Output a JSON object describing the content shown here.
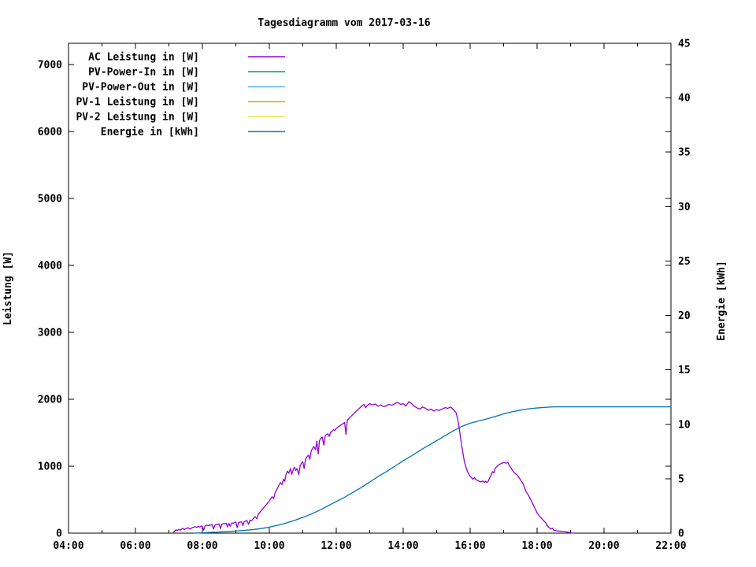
{
  "title": "Tagesdiagramm vom 2017-03-16",
  "background_color": "#ffffff",
  "chart_data": {
    "type": "line",
    "title": "Tagesdiagramm vom 2017-03-16",
    "xlabel": "",
    "ylabel": "Leistung [W]",
    "y2label": "Energie [kWh]",
    "xlim": [
      4,
      22
    ],
    "ylim": [
      0,
      7320
    ],
    "y2lim": [
      0,
      45
    ],
    "grid": "off",
    "legend_position": "inside-top-left",
    "axes": {
      "x": {
        "major_ticks": [
          {
            "v": 4,
            "label": "04:00"
          },
          {
            "v": 6,
            "label": "06:00"
          },
          {
            "v": 8,
            "label": "08:00"
          },
          {
            "v": 10,
            "label": "10:00"
          },
          {
            "v": 12,
            "label": "12:00"
          },
          {
            "v": 14,
            "label": "14:00"
          },
          {
            "v": 16,
            "label": "16:00"
          },
          {
            "v": 18,
            "label": "18:00"
          },
          {
            "v": 20,
            "label": "20:00"
          },
          {
            "v": 22,
            "label": "22:00"
          }
        ],
        "minor_ticks": [
          5,
          7,
          9,
          11,
          13,
          15,
          17,
          19,
          21
        ]
      },
      "y": {
        "label": "Leistung [W]",
        "ticks": [
          {
            "v": 0,
            "label": "0"
          },
          {
            "v": 1000,
            "label": "1000"
          },
          {
            "v": 2000,
            "label": "2000"
          },
          {
            "v": 3000,
            "label": "3000"
          },
          {
            "v": 4000,
            "label": "4000"
          },
          {
            "v": 5000,
            "label": "5000"
          },
          {
            "v": 6000,
            "label": "6000"
          },
          {
            "v": 7000,
            "label": "7000"
          }
        ]
      },
      "y2": {
        "label": "Energie [kWh]",
        "ticks": [
          {
            "v": 0,
            "label": "0"
          },
          {
            "v": 5,
            "label": "5"
          },
          {
            "v": 10,
            "label": "10"
          },
          {
            "v": 15,
            "label": "15"
          },
          {
            "v": 20,
            "label": "20"
          },
          {
            "v": 25,
            "label": "25"
          },
          {
            "v": 30,
            "label": "30"
          },
          {
            "v": 35,
            "label": "35"
          },
          {
            "v": 40,
            "label": "40"
          },
          {
            "v": 45,
            "label": "45"
          }
        ]
      }
    },
    "series": [
      {
        "name": "AC Leistung in [W]",
        "color": "#9400d3",
        "axis": "y",
        "points": [
          [
            7.13,
            5
          ],
          [
            7.17,
            30
          ],
          [
            7.21,
            50
          ],
          [
            7.25,
            40
          ],
          [
            7.29,
            55
          ],
          [
            7.33,
            45
          ],
          [
            7.38,
            60
          ],
          [
            7.42,
            70
          ],
          [
            7.46,
            55
          ],
          [
            7.5,
            65
          ],
          [
            7.54,
            75
          ],
          [
            7.58,
            80
          ],
          [
            7.63,
            60
          ],
          [
            7.67,
            75
          ],
          [
            7.71,
            85
          ],
          [
            7.75,
            90
          ],
          [
            7.79,
            95
          ],
          [
            7.83,
            88
          ],
          [
            7.88,
            100
          ],
          [
            7.92,
            92
          ],
          [
            7.96,
            105
          ],
          [
            8.0,
            100
          ],
          [
            8.04,
            45
          ],
          [
            8.08,
            108
          ],
          [
            8.13,
            118
          ],
          [
            8.17,
            112
          ],
          [
            8.21,
            122
          ],
          [
            8.25,
            118
          ],
          [
            8.29,
            128
          ],
          [
            8.33,
            62
          ],
          [
            8.38,
            124
          ],
          [
            8.42,
            132
          ],
          [
            8.46,
            128
          ],
          [
            8.5,
            138
          ],
          [
            8.54,
            68
          ],
          [
            8.58,
            134
          ],
          [
            8.63,
            142
          ],
          [
            8.67,
            138
          ],
          [
            8.71,
            148
          ],
          [
            8.75,
            92
          ],
          [
            8.79,
            148
          ],
          [
            8.83,
            102
          ],
          [
            8.88,
            152
          ],
          [
            8.92,
            148
          ],
          [
            8.96,
            158
          ],
          [
            9.0,
            165
          ],
          [
            9.04,
            82
          ],
          [
            9.08,
            158
          ],
          [
            9.13,
            165
          ],
          [
            9.17,
            168
          ],
          [
            9.21,
            112
          ],
          [
            9.25,
            172
          ],
          [
            9.29,
            182
          ],
          [
            9.33,
            188
          ],
          [
            9.38,
            132
          ],
          [
            9.42,
            195
          ],
          [
            9.46,
            185
          ],
          [
            9.5,
            200
          ],
          [
            9.54,
            230
          ],
          [
            9.58,
            245
          ],
          [
            9.63,
            215
          ],
          [
            9.67,
            280
          ],
          [
            9.75,
            330
          ],
          [
            9.83,
            380
          ],
          [
            9.92,
            430
          ],
          [
            10.0,
            480
          ],
          [
            10.08,
            545
          ],
          [
            10.13,
            515
          ],
          [
            10.17,
            600
          ],
          [
            10.25,
            680
          ],
          [
            10.33,
            755
          ],
          [
            10.38,
            725
          ],
          [
            10.42,
            805
          ],
          [
            10.46,
            775
          ],
          [
            10.5,
            880
          ],
          [
            10.54,
            925
          ],
          [
            10.58,
            895
          ],
          [
            10.63,
            965
          ],
          [
            10.67,
            880
          ],
          [
            10.71,
            945
          ],
          [
            10.75,
            985
          ],
          [
            10.79,
            935
          ],
          [
            10.83,
            965
          ],
          [
            10.88,
            875
          ],
          [
            10.92,
            1005
          ],
          [
            10.96,
            1045
          ],
          [
            11.0,
            1065
          ],
          [
            11.04,
            965
          ],
          [
            11.08,
            1105
          ],
          [
            11.13,
            1145
          ],
          [
            11.17,
            1165
          ],
          [
            11.21,
            1105
          ],
          [
            11.25,
            1225
          ],
          [
            11.29,
            1265
          ],
          [
            11.33,
            1295
          ],
          [
            11.38,
            1245
          ],
          [
            11.42,
            1375
          ],
          [
            11.46,
            1185
          ],
          [
            11.5,
            1385
          ],
          [
            11.54,
            1415
          ],
          [
            11.58,
            1435
          ],
          [
            11.63,
            1315
          ],
          [
            11.67,
            1455
          ],
          [
            11.71,
            1475
          ],
          [
            11.75,
            1485
          ],
          [
            11.79,
            1445
          ],
          [
            11.83,
            1505
          ],
          [
            11.88,
            1525
          ],
          [
            11.92,
            1545
          ],
          [
            11.96,
            1535
          ],
          [
            12.0,
            1565
          ],
          [
            12.08,
            1595
          ],
          [
            12.17,
            1625
          ],
          [
            12.25,
            1655
          ],
          [
            12.29,
            1475
          ],
          [
            12.33,
            1685
          ],
          [
            12.42,
            1735
          ],
          [
            12.5,
            1775
          ],
          [
            12.58,
            1815
          ],
          [
            12.67,
            1855
          ],
          [
            12.75,
            1895
          ],
          [
            12.83,
            1925
          ],
          [
            12.88,
            1875
          ],
          [
            12.92,
            1905
          ],
          [
            13.0,
            1935
          ],
          [
            13.08,
            1915
          ],
          [
            13.17,
            1930
          ],
          [
            13.25,
            1895
          ],
          [
            13.33,
            1915
          ],
          [
            13.42,
            1890
          ],
          [
            13.5,
            1905
          ],
          [
            13.58,
            1925
          ],
          [
            13.67,
            1910
          ],
          [
            13.75,
            1935
          ],
          [
            13.83,
            1955
          ],
          [
            13.92,
            1925
          ],
          [
            14.0,
            1935
          ],
          [
            14.08,
            1900
          ],
          [
            14.17,
            1965
          ],
          [
            14.25,
            1935
          ],
          [
            14.33,
            1895
          ],
          [
            14.42,
            1870
          ],
          [
            14.5,
            1855
          ],
          [
            14.58,
            1885
          ],
          [
            14.67,
            1865
          ],
          [
            14.75,
            1835
          ],
          [
            14.83,
            1855
          ],
          [
            14.92,
            1825
          ],
          [
            15.0,
            1845
          ],
          [
            15.08,
            1835
          ],
          [
            15.17,
            1855
          ],
          [
            15.25,
            1875
          ],
          [
            15.33,
            1865
          ],
          [
            15.42,
            1885
          ],
          [
            15.5,
            1845
          ],
          [
            15.58,
            1800
          ],
          [
            15.63,
            1700
          ],
          [
            15.67,
            1580
          ],
          [
            15.75,
            1300
          ],
          [
            15.83,
            1060
          ],
          [
            15.92,
            920
          ],
          [
            16.0,
            850
          ],
          [
            16.08,
            805
          ],
          [
            16.13,
            830
          ],
          [
            16.17,
            800
          ],
          [
            16.25,
            780
          ],
          [
            16.33,
            765
          ],
          [
            16.38,
            780
          ],
          [
            16.42,
            760
          ],
          [
            16.46,
            775
          ],
          [
            16.5,
            755
          ],
          [
            16.54,
            775
          ],
          [
            16.58,
            820
          ],
          [
            16.63,
            870
          ],
          [
            16.67,
            920
          ],
          [
            16.71,
            900
          ],
          [
            16.75,
            970
          ],
          [
            16.83,
            1010
          ],
          [
            16.92,
            1040
          ],
          [
            17.0,
            1055
          ],
          [
            17.08,
            1048
          ],
          [
            17.13,
            1055
          ],
          [
            17.17,
            1010
          ],
          [
            17.21,
            980
          ],
          [
            17.25,
            950
          ],
          [
            17.29,
            920
          ],
          [
            17.33,
            900
          ],
          [
            17.38,
            880
          ],
          [
            17.42,
            860
          ],
          [
            17.5,
            800
          ],
          [
            17.58,
            740
          ],
          [
            17.67,
            620
          ],
          [
            17.75,
            560
          ],
          [
            17.83,
            480
          ],
          [
            17.92,
            390
          ],
          [
            18.0,
            300
          ],
          [
            18.08,
            250
          ],
          [
            18.17,
            200
          ],
          [
            18.25,
            160
          ],
          [
            18.33,
            95
          ],
          [
            18.42,
            60
          ],
          [
            18.46,
            75
          ],
          [
            18.5,
            42
          ],
          [
            18.58,
            35
          ],
          [
            18.67,
            30
          ],
          [
            18.75,
            28
          ],
          [
            18.83,
            22
          ],
          [
            18.92,
            14
          ],
          [
            19.0,
            6
          ],
          [
            19.08,
            0
          ]
        ]
      },
      {
        "name": "PV-Power-In in [W]",
        "color": "#009e73",
        "axis": "y",
        "points": []
      },
      {
        "name": "PV-Power-Out in [W]",
        "color": "#56b4e9",
        "axis": "y",
        "points": []
      },
      {
        "name": "PV-1 Leistung in [W]",
        "color": "#e69f00",
        "axis": "y",
        "points": []
      },
      {
        "name": "PV-2 Leistung in [W]",
        "color": "#f0e442",
        "axis": "y",
        "points": []
      },
      {
        "name": "Energie in [kWh]",
        "color": "#0072b2",
        "axis": "y2",
        "points": [
          [
            7.75,
            0
          ],
          [
            8.0,
            0.03
          ],
          [
            8.25,
            0.07
          ],
          [
            8.5,
            0.1
          ],
          [
            8.75,
            0.15
          ],
          [
            9.0,
            0.2
          ],
          [
            9.25,
            0.25
          ],
          [
            9.5,
            0.32
          ],
          [
            9.75,
            0.42
          ],
          [
            10.0,
            0.55
          ],
          [
            10.25,
            0.72
          ],
          [
            10.5,
            0.92
          ],
          [
            10.75,
            1.17
          ],
          [
            11.0,
            1.45
          ],
          [
            11.25,
            1.75
          ],
          [
            11.5,
            2.1
          ],
          [
            11.75,
            2.5
          ],
          [
            12.0,
            2.9
          ],
          [
            12.25,
            3.3
          ],
          [
            12.5,
            3.75
          ],
          [
            12.75,
            4.2
          ],
          [
            13.0,
            4.7
          ],
          [
            13.25,
            5.2
          ],
          [
            13.5,
            5.65
          ],
          [
            13.75,
            6.15
          ],
          [
            14.0,
            6.65
          ],
          [
            14.25,
            7.1
          ],
          [
            14.5,
            7.6
          ],
          [
            14.75,
            8.05
          ],
          [
            15.0,
            8.5
          ],
          [
            15.25,
            8.95
          ],
          [
            15.5,
            9.4
          ],
          [
            15.75,
            9.8
          ],
          [
            16.0,
            10.1
          ],
          [
            16.25,
            10.3
          ],
          [
            16.5,
            10.5
          ],
          [
            16.75,
            10.72
          ],
          [
            17.0,
            10.95
          ],
          [
            17.25,
            11.15
          ],
          [
            17.5,
            11.3
          ],
          [
            17.75,
            11.42
          ],
          [
            18.0,
            11.5
          ],
          [
            18.25,
            11.56
          ],
          [
            18.5,
            11.6
          ],
          [
            18.75,
            11.6
          ],
          [
            19.0,
            11.6
          ],
          [
            20.0,
            11.6
          ],
          [
            21.0,
            11.6
          ],
          [
            22.0,
            11.6
          ]
        ]
      }
    ]
  }
}
